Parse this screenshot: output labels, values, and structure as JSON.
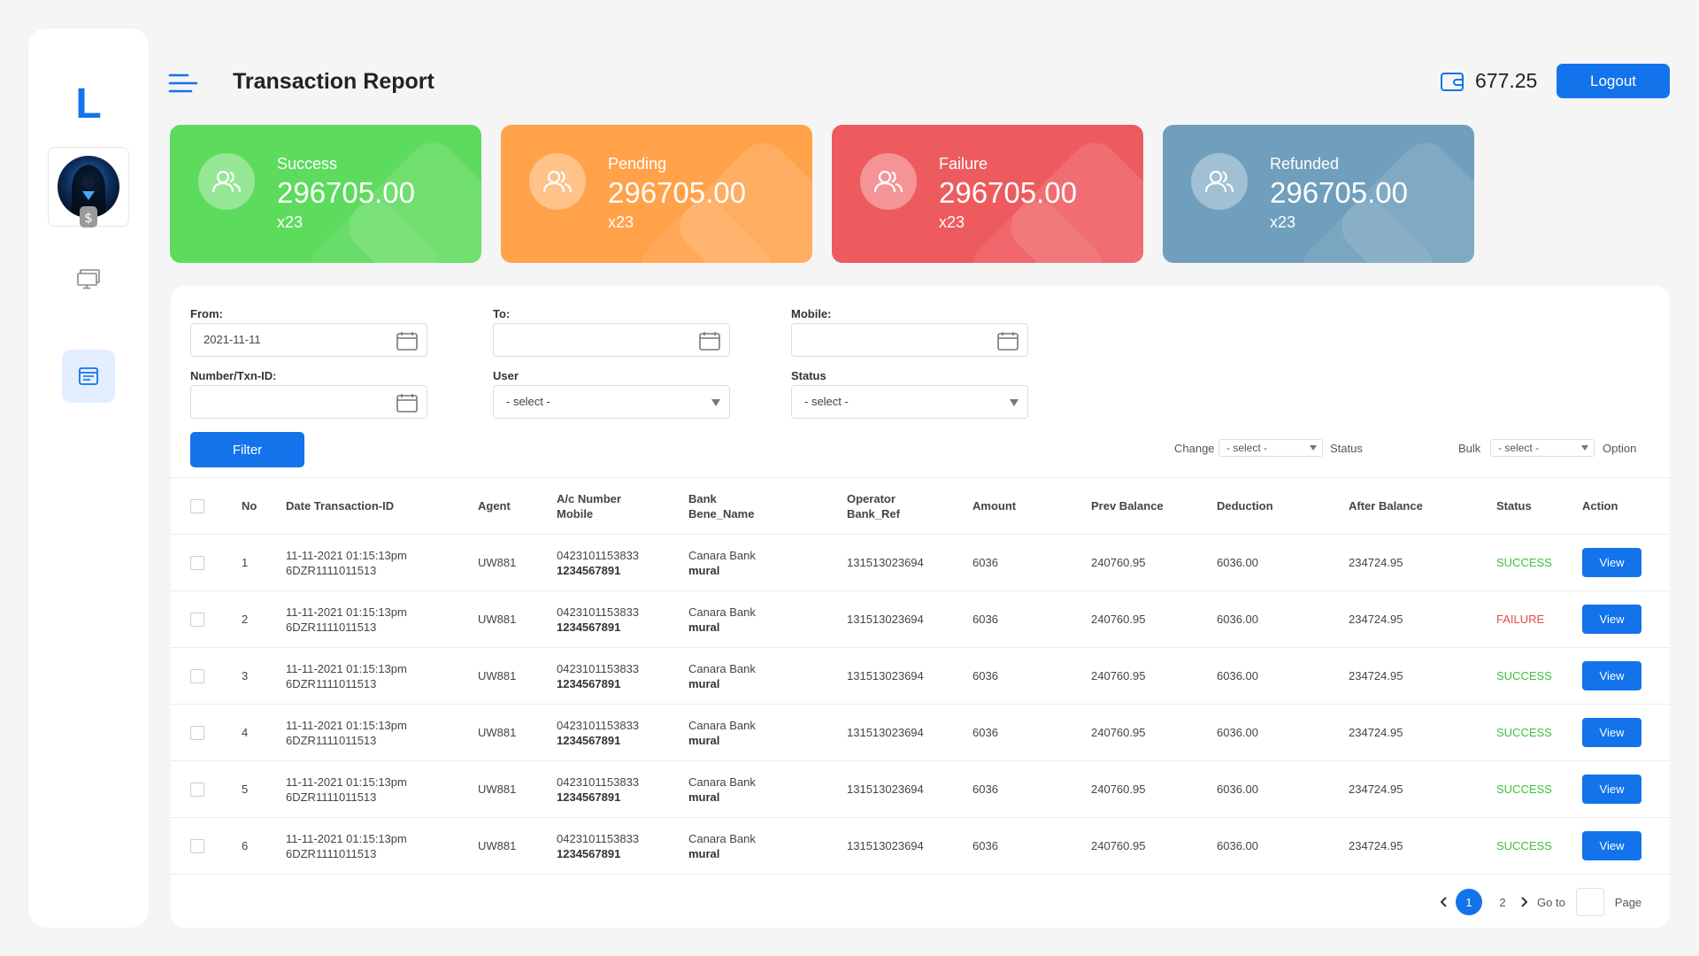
{
  "sidebar": {
    "logo": "L"
  },
  "header": {
    "title": "Transaction Report",
    "wallet_amount": "677.25",
    "logout_label": "Logout"
  },
  "cards": [
    {
      "label": "Success",
      "amount": "296705.00",
      "count": "x23",
      "color": "#5ddb5d"
    },
    {
      "label": "Pending",
      "amount": "296705.00",
      "count": "x23",
      "color": "#ffa24a"
    },
    {
      "label": "Failure",
      "amount": "296705.00",
      "count": "x23",
      "color": "#ee5b5e"
    },
    {
      "label": "Refunded",
      "amount": "296705.00",
      "count": "x23",
      "color": "#6f9fbc"
    }
  ],
  "filters": {
    "from_label": "From:",
    "from_value": "2021-11-11",
    "to_label": "To:",
    "to_value": "",
    "mobile_label": "Mobile:",
    "mobile_value": "",
    "txn_label": "Number/Txn-ID:",
    "txn_value": "",
    "user_label": "User",
    "user_value": "- select -",
    "status_label": "Status",
    "status_value": "- select -",
    "filter_button": "Filter",
    "change_label": "Change",
    "change_select": "- select -",
    "change_suffix": "Status",
    "bulk_label": "Bulk",
    "bulk_select": "- select -",
    "bulk_suffix": "Option"
  },
  "table": {
    "headers": {
      "no": "No",
      "date": "Date Transaction-ID",
      "agent": "Agent",
      "ac1": "A/c Number",
      "ac2": "Mobile",
      "bank1": "Bank",
      "bank2": "Bene_Name",
      "op1": "Operator",
      "op2": "Bank_Ref",
      "amount": "Amount",
      "prev": "Prev Balance",
      "deduction": "Deduction",
      "after": "After Balance",
      "status": "Status",
      "action": "Action"
    },
    "rows": [
      {
        "no": "1",
        "date": "11-11-2021 01:15:13pm",
        "txn": "6DZR1111011513",
        "agent": "UW881",
        "ac": "0423101153833",
        "mobile": "1234567891",
        "bank": "Canara Bank",
        "bene": "mural",
        "ref": "131513023694",
        "amount": "6036",
        "prev": "240760.95",
        "deduction": "6036.00",
        "after": "234724.95",
        "status": "SUCCESS",
        "action": "View"
      },
      {
        "no": "2",
        "date": "11-11-2021 01:15:13pm",
        "txn": "6DZR1111011513",
        "agent": "UW881",
        "ac": "0423101153833",
        "mobile": "1234567891",
        "bank": "Canara Bank",
        "bene": "mural",
        "ref": "131513023694",
        "amount": "6036",
        "prev": "240760.95",
        "deduction": "6036.00",
        "after": "234724.95",
        "status": "FAILURE",
        "action": "View"
      },
      {
        "no": "3",
        "date": "11-11-2021 01:15:13pm",
        "txn": "6DZR1111011513",
        "agent": "UW881",
        "ac": "0423101153833",
        "mobile": "1234567891",
        "bank": "Canara Bank",
        "bene": "mural",
        "ref": "131513023694",
        "amount": "6036",
        "prev": "240760.95",
        "deduction": "6036.00",
        "after": "234724.95",
        "status": "SUCCESS",
        "action": "View"
      },
      {
        "no": "4",
        "date": "11-11-2021 01:15:13pm",
        "txn": "6DZR1111011513",
        "agent": "UW881",
        "ac": "0423101153833",
        "mobile": "1234567891",
        "bank": "Canara Bank",
        "bene": "mural",
        "ref": "131513023694",
        "amount": "6036",
        "prev": "240760.95",
        "deduction": "6036.00",
        "after": "234724.95",
        "status": "SUCCESS",
        "action": "View"
      },
      {
        "no": "5",
        "date": "11-11-2021 01:15:13pm",
        "txn": "6DZR1111011513",
        "agent": "UW881",
        "ac": "0423101153833",
        "mobile": "1234567891",
        "bank": "Canara Bank",
        "bene": "mural",
        "ref": "131513023694",
        "amount": "6036",
        "prev": "240760.95",
        "deduction": "6036.00",
        "after": "234724.95",
        "status": "SUCCESS",
        "action": "View"
      },
      {
        "no": "6",
        "date": "11-11-2021 01:15:13pm",
        "txn": "6DZR1111011513",
        "agent": "UW881",
        "ac": "0423101153833",
        "mobile": "1234567891",
        "bank": "Canara Bank",
        "bene": "mural",
        "ref": "131513023694",
        "amount": "6036",
        "prev": "240760.95",
        "deduction": "6036.00",
        "after": "234724.95",
        "status": "SUCCESS",
        "action": "View"
      }
    ]
  },
  "pagination": {
    "page1": "1",
    "page2": "2",
    "goto_label": "Go to",
    "page_label": "Page"
  },
  "icons": {
    "menu": "menu-icon",
    "wallet": "wallet-icon",
    "users": "users-icon",
    "dollar": "dollar-icon",
    "monitor": "monitor-icon",
    "report": "report-icon",
    "calendar": "calendar-icon",
    "chevron_left": "chevron-left-icon",
    "chevron_right": "chevron-right-icon"
  },
  "colors": {
    "accent": "#1273eb",
    "success": "#3cc03c",
    "failure": "#e14b4b"
  }
}
